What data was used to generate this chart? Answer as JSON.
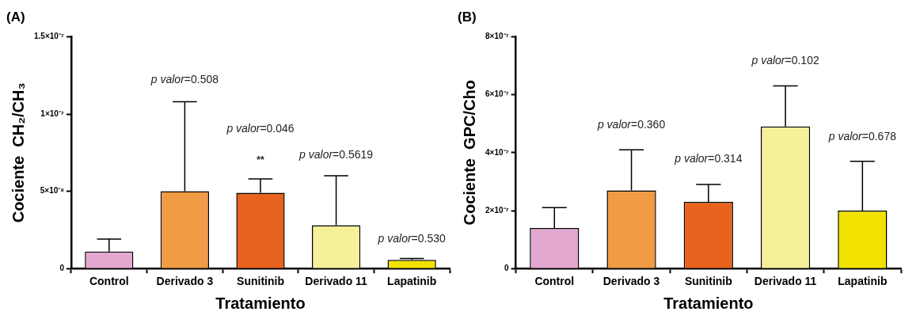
{
  "chart_data": [
    {
      "type": "bar",
      "title": "(A)",
      "xlabel": "Tratamiento",
      "ylabel": "Cociente  CH₂/CH₃",
      "categories": [
        "Control",
        "Derivado 3",
        "Sunitinib",
        "Derivado 11",
        "Lapatinib"
      ],
      "values": [
        1.1e-08,
        5e-08,
        4.9e-08,
        2.8e-08,
        5.6e-09
      ],
      "colors": [
        "#e2a8cf",
        "#f19b45",
        "#e8641e",
        "#f7f09b",
        "#f2e200"
      ],
      "errors": [
        [
          1.1e-08,
          1.9e-08
        ],
        [
          5e-08,
          1.08e-07
        ],
        [
          4.9e-08,
          5.8e-08
        ],
        [
          2.8e-08,
          6e-08
        ],
        [
          5.6e-09,
          6.5e-09
        ]
      ],
      "ylim": [
        0,
        1.5e-07
      ],
      "yticks": [
        0,
        {
          "value": 5e-08,
          "label": "5×10⁻⁸"
        },
        {
          "value": 1e-07,
          "label": "1×10⁻⁷"
        },
        {
          "value": 1.5e-07,
          "label": "1.5×10⁻⁷"
        }
      ],
      "grid": false,
      "legend": false,
      "annotations": [
        "p valor=0.508",
        "p valor=0.046",
        "**",
        "p valor=0.5619",
        "p valor=0.530"
      ]
    },
    {
      "type": "bar",
      "title": "(B)",
      "xlabel": "Tratamiento",
      "ylabel": "Cociente  GPC/Cho",
      "categories": [
        "Control",
        "Derivado 3",
        "Sunitinib",
        "Derivado 11",
        "Lapatinib"
      ],
      "values": [
        1.4e-07,
        2.7e-07,
        2.3e-07,
        4.9e-07,
        2e-07
      ],
      "colors": [
        "#e2a8cf",
        "#f19b45",
        "#e8641e",
        "#f7f09b",
        "#f2e200"
      ],
      "errors": [
        [
          1.4e-07,
          2.1e-07
        ],
        [
          2.7e-07,
          4.1e-07
        ],
        [
          2.3e-07,
          2.9e-07
        ],
        [
          4.9e-07,
          6.3e-07
        ],
        [
          2e-07,
          3.7e-07
        ]
      ],
      "ylim": [
        0,
        8e-07
      ],
      "yticks": [
        0,
        {
          "value": 2e-07,
          "label": "2×10⁻⁷"
        },
        {
          "value": 4e-07,
          "label": "4×10⁻⁷"
        },
        {
          "value": 6e-07,
          "label": "6×10⁻⁷"
        },
        {
          "value": 8e-07,
          "label": "8×10⁻⁷"
        }
      ],
      "grid": false,
      "legend": false,
      "annotations": [
        "p valor=0.360",
        "p valor=0.314",
        "p valor=0.102",
        "p valor=0.678"
      ]
    }
  ]
}
